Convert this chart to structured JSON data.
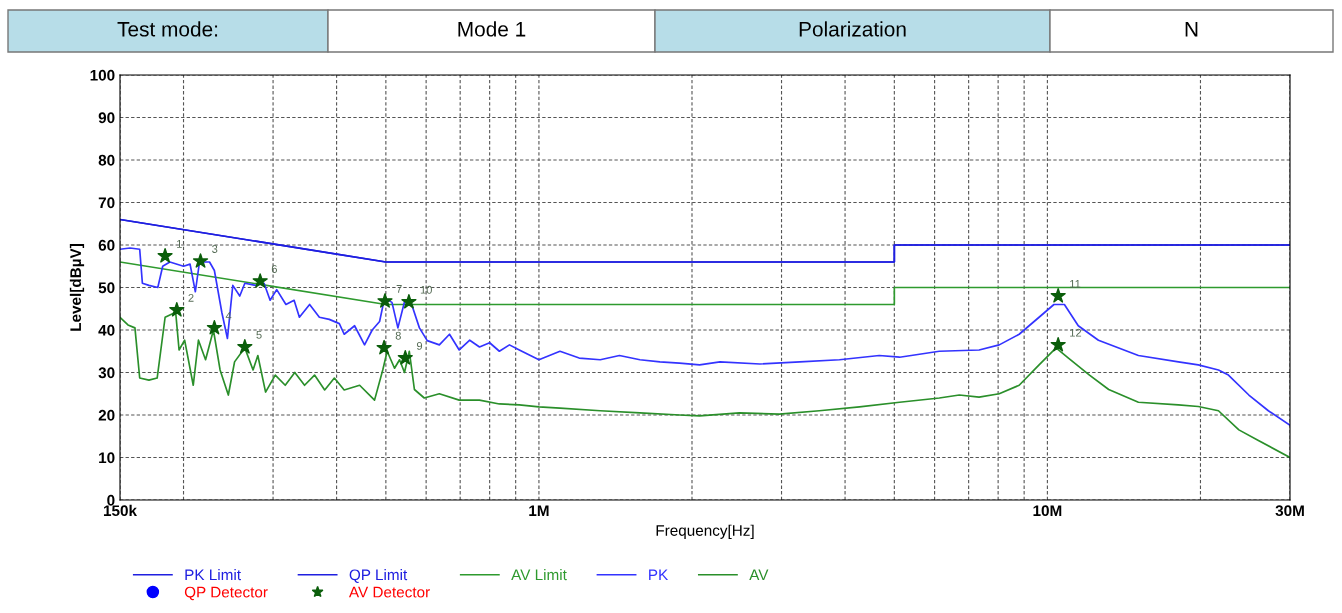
{
  "chart_data": {
    "type": "line",
    "xlabel": "Frequency[Hz]",
    "ylabel": "Level[dBµV]",
    "log": "x",
    "grid": true,
    "legend": "bottom",
    "line_style": "solid",
    "xlim": [
      150000,
      30000000
    ],
    "ylim": [
      0,
      100
    ],
    "xticks": [
      {
        "value": 150000,
        "label": "150k"
      },
      {
        "value": 200000,
        "label": null
      },
      {
        "value": 300000,
        "label": null
      },
      {
        "value": 400000,
        "label": null
      },
      {
        "value": 500000,
        "label": null
      },
      {
        "value": 600000,
        "label": null
      },
      {
        "value": 700000,
        "label": null
      },
      {
        "value": 800000,
        "label": null
      },
      {
        "value": 900000,
        "label": null
      },
      {
        "value": 1000000,
        "label": "1M"
      },
      {
        "value": 2000000,
        "label": null
      },
      {
        "value": 3000000,
        "label": null
      },
      {
        "value": 4000000,
        "label": null
      },
      {
        "value": 5000000,
        "label": null
      },
      {
        "value": 6000000,
        "label": null
      },
      {
        "value": 7000000,
        "label": null
      },
      {
        "value": 8000000,
        "label": null
      },
      {
        "value": 9000000,
        "label": null
      },
      {
        "value": 10000000,
        "label": "10M"
      },
      {
        "value": 20000000,
        "label": null
      },
      {
        "value": 30000000,
        "label": "30M"
      }
    ],
    "yticks": [
      0,
      10,
      20,
      30,
      40,
      50,
      60,
      70,
      80,
      90,
      100
    ],
    "series": [
      {
        "name": "PK Limit",
        "color": "#1f1fe0",
        "x": [
          150000,
          500000,
          5000000,
          5000000,
          30000000
        ],
        "values": [
          66,
          56,
          56,
          60,
          60
        ]
      },
      {
        "name": "QP Limit",
        "color": "#1f1fe0",
        "x": [
          150000,
          500000,
          5000000,
          5000000,
          30000000
        ],
        "values": [
          66,
          56,
          56,
          60,
          60
        ]
      },
      {
        "name": "AV Limit",
        "color": "#2e9a2e",
        "x": [
          150000,
          500000,
          5000000,
          5000000,
          30000000
        ],
        "values": [
          56,
          46,
          46,
          50,
          50
        ]
      },
      {
        "name": "PK",
        "color": "#3333ff",
        "x": [
          150000,
          157000,
          164000,
          166000,
          171000,
          178000,
          182000,
          188000,
          200000,
          206000,
          211000,
          215000,
          225000,
          230000,
          238000,
          244000,
          250000,
          258000,
          264000,
          277000,
          288000,
          296000,
          305000,
          318000,
          330000,
          338000,
          354000,
          370000,
          387000,
          405000,
          414000,
          434000,
          454000,
          470000,
          486000,
          497000,
          514000,
          528000,
          545000,
          562000,
          582000,
          603000,
          637000,
          667000,
          697000,
          731000,
          764000,
          800000,
          836000,
          875000,
          915000,
          1000000,
          1100000,
          1200000,
          1320000,
          1440000,
          1580000,
          1730000,
          1890000,
          2070000,
          2270000,
          2720000,
          3260000,
          3900000,
          4670000,
          5120000,
          6130000,
          7340000,
          8040000,
          8800000,
          9630000,
          10300000,
          10800000,
          11500000,
          12600000,
          15100000,
          18100000,
          19800000,
          21700000,
          22700000,
          24900000,
          27200000,
          30000000
        ],
        "values": [
          59,
          59.3,
          59,
          51,
          50.5,
          50,
          55,
          56,
          55,
          55.5,
          49,
          56,
          56,
          54,
          44,
          38,
          50.5,
          48,
          51,
          50.5,
          51,
          47,
          49.5,
          46,
          47,
          43,
          46,
          43,
          42.5,
          41.5,
          39,
          41,
          36.5,
          40,
          42,
          47.5,
          46.5,
          40.5,
          47,
          46,
          40.5,
          37.5,
          36.5,
          39,
          35.3,
          37.6,
          36,
          37,
          35,
          36.5,
          35.3,
          33,
          35,
          33.4,
          33,
          34,
          33,
          32.5,
          32.2,
          31.8,
          32.5,
          32,
          32.5,
          33,
          34,
          33.6,
          35,
          35.3,
          36.5,
          39,
          43,
          46,
          46,
          41,
          37.6,
          34,
          32.5,
          31.8,
          30.6,
          29.4,
          24.7,
          21,
          17.6
        ]
      },
      {
        "name": "AV",
        "color": "#2a8f2a",
        "x": [
          150000,
          155500,
          160500,
          164000,
          171000,
          177500,
          184000,
          193000,
          196000,
          201000,
          209000,
          214000,
          221000,
          229000,
          236000,
          245000,
          252000,
          264000,
          274000,
          280000,
          290000,
          303000,
          317000,
          331000,
          346000,
          362000,
          379000,
          396000,
          414000,
          444000,
          475000,
          493000,
          503000,
          520000,
          532000,
          544000,
          556000,
          569000,
          595000,
          637000,
          697000,
          764000,
          836000,
          915000,
          1000000,
          1100000,
          1320000,
          1580000,
          1890000,
          2070000,
          2480000,
          2970000,
          3560000,
          4270000,
          5120000,
          6130000,
          6710000,
          7340000,
          8040000,
          8800000,
          9630000,
          10400000,
          11000000,
          12100000,
          13200000,
          15100000,
          18100000,
          19800000,
          21700000,
          23800000,
          26000000,
          30000000
        ],
        "values": [
          43,
          41.2,
          40.5,
          28.7,
          28.2,
          28.7,
          43,
          44.2,
          35.3,
          37.6,
          27,
          37.6,
          33,
          40,
          30.6,
          24.7,
          32.5,
          35.8,
          30.6,
          34,
          25.4,
          29.4,
          27,
          30,
          27,
          29.4,
          25.9,
          28.7,
          25.9,
          27,
          23.5,
          30.6,
          35,
          31,
          33,
          30,
          35,
          26,
          24,
          25,
          23.5,
          23.5,
          22.6,
          22.4,
          21.9,
          21.6,
          21,
          20.5,
          20,
          19.8,
          20.5,
          20.2,
          21,
          21.9,
          23,
          24,
          24.7,
          24.2,
          25,
          27,
          31.8,
          35.8,
          33.4,
          29.4,
          26,
          23,
          22.4,
          22,
          21,
          16.5,
          14,
          10
        ]
      },
      {
        "name": "QP Detector",
        "type": "scatter",
        "marker": "circle",
        "color": "#0000ff"
      },
      {
        "name": "AV Detector",
        "type": "scatter",
        "marker": "star",
        "color": "#0b5e0b",
        "x": [
          184000,
          194000,
          216000,
          230000,
          264000,
          283000,
          498000,
          496000,
          546000,
          555000,
          10500000,
          10500000
        ],
        "values": [
          57.4,
          44.7,
          56.2,
          40.5,
          36.0,
          51.5,
          46.8,
          35.8,
          33.4,
          46.6,
          48.0,
          36.5
        ]
      }
    ],
    "annotations": [
      "Test mode:",
      "Mode 1",
      "Polarization",
      "N",
      {
        "text": "1",
        "x": 184000,
        "y": 57.4
      },
      {
        "text": "2",
        "x": 194000,
        "y": 44.7
      },
      {
        "text": "3",
        "x": 216000,
        "y": 56.2
      },
      {
        "text": "4",
        "x": 230000,
        "y": 40.5
      },
      {
        "text": "5",
        "x": 264000,
        "y": 36.0
      },
      {
        "text": "6",
        "x": 283000,
        "y": 51.5
      },
      {
        "text": "7",
        "x": 498000,
        "y": 46.8
      },
      {
        "text": "8",
        "x": 496000,
        "y": 35.8
      },
      {
        "text": "9",
        "x": 546000,
        "y": 33.4
      },
      {
        "text": "10",
        "x": 555000,
        "y": 46.6
      },
      {
        "text": "11",
        "x": 10500000,
        "y": 48.0
      },
      {
        "text": "12",
        "x": 10500000,
        "y": 36.5
      }
    ]
  }
}
